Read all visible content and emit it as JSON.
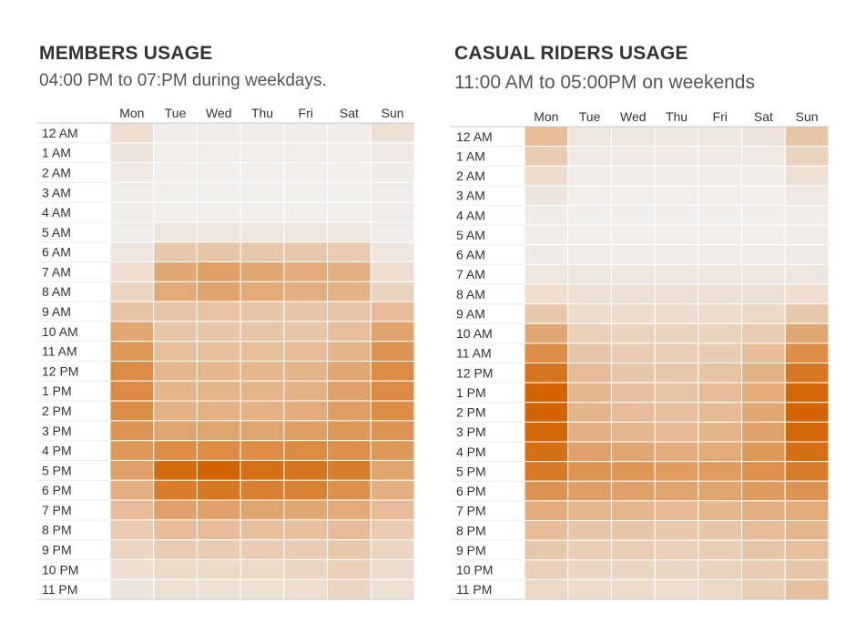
{
  "chart_data": [
    {
      "type": "heatmap",
      "title": "MEMBERS USAGE",
      "subtitle": "04:00 PM to 07:PM during weekdays.",
      "columns": [
        "Mon",
        "Tue",
        "Wed",
        "Thu",
        "Fri",
        "Sat",
        "Sun"
      ],
      "rows": [
        "12 AM",
        "1 AM",
        "2 AM",
        "3 AM",
        "4 AM",
        "5 AM",
        "6 AM",
        "7 AM",
        "8 AM",
        "9 AM",
        "10 AM",
        "11 AM",
        "12 PM",
        "1 PM",
        "2 PM",
        "3 PM",
        "4 PM",
        "5 PM",
        "6 PM",
        "7 PM",
        "8 PM",
        "9 PM",
        "10 PM",
        "11 PM"
      ],
      "color_low": "#f0efee",
      "color_high": "#d36400",
      "values": [
        [
          0.12,
          0.02,
          0.02,
          0.02,
          0.02,
          0.02,
          0.1
        ],
        [
          0.08,
          0.01,
          0.01,
          0.01,
          0.01,
          0.01,
          0.05
        ],
        [
          0.04,
          0.0,
          0.0,
          0.0,
          0.0,
          0.0,
          0.03
        ],
        [
          0.02,
          0.0,
          0.0,
          0.0,
          0.0,
          0.0,
          0.02
        ],
        [
          0.02,
          0.0,
          0.0,
          0.0,
          0.0,
          0.0,
          0.02
        ],
        [
          0.02,
          0.06,
          0.06,
          0.06,
          0.06,
          0.06,
          0.02
        ],
        [
          0.06,
          0.28,
          0.3,
          0.28,
          0.28,
          0.26,
          0.06
        ],
        [
          0.12,
          0.52,
          0.58,
          0.52,
          0.48,
          0.46,
          0.12
        ],
        [
          0.18,
          0.5,
          0.55,
          0.5,
          0.46,
          0.44,
          0.2
        ],
        [
          0.32,
          0.3,
          0.32,
          0.3,
          0.3,
          0.3,
          0.36
        ],
        [
          0.52,
          0.3,
          0.3,
          0.3,
          0.3,
          0.34,
          0.55
        ],
        [
          0.62,
          0.34,
          0.34,
          0.34,
          0.36,
          0.42,
          0.66
        ],
        [
          0.72,
          0.4,
          0.4,
          0.4,
          0.42,
          0.52,
          0.72
        ],
        [
          0.72,
          0.42,
          0.42,
          0.42,
          0.44,
          0.56,
          0.72
        ],
        [
          0.7,
          0.44,
          0.44,
          0.44,
          0.48,
          0.58,
          0.7
        ],
        [
          0.66,
          0.54,
          0.54,
          0.54,
          0.58,
          0.62,
          0.66
        ],
        [
          0.62,
          0.7,
          0.7,
          0.7,
          0.72,
          0.68,
          0.62
        ],
        [
          0.56,
          0.95,
          1.0,
          0.92,
          0.88,
          0.82,
          0.54
        ],
        [
          0.46,
          0.82,
          0.86,
          0.8,
          0.78,
          0.68,
          0.46
        ],
        [
          0.36,
          0.56,
          0.56,
          0.54,
          0.52,
          0.5,
          0.36
        ],
        [
          0.26,
          0.36,
          0.36,
          0.34,
          0.34,
          0.36,
          0.26
        ],
        [
          0.18,
          0.26,
          0.26,
          0.25,
          0.25,
          0.28,
          0.18
        ],
        [
          0.12,
          0.16,
          0.16,
          0.16,
          0.18,
          0.22,
          0.14
        ],
        [
          0.08,
          0.1,
          0.1,
          0.1,
          0.12,
          0.18,
          0.1
        ]
      ]
    },
    {
      "type": "heatmap",
      "title": "CASUAL RIDERS USAGE",
      "subtitle": "11:00 AM to 05:00PM on weekends",
      "columns": [
        "Mon",
        "Tue",
        "Wed",
        "Thu",
        "Fri",
        "Sat",
        "Sun"
      ],
      "rows": [
        "12 AM",
        "1 AM",
        "2 AM",
        "3 AM",
        "4 AM",
        "5 AM",
        "6 AM",
        "7 AM",
        "8 AM",
        "9 AM",
        "10 AM",
        "11 AM",
        "12 PM",
        "1 PM",
        "2 PM",
        "3 PM",
        "4 PM",
        "5 PM",
        "6 PM",
        "7 PM",
        "8 PM",
        "9 PM",
        "10 PM",
        "11 PM"
      ],
      "color_low": "#f0efee",
      "color_high": "#d36400",
      "values": [
        [
          0.36,
          0.06,
          0.06,
          0.06,
          0.06,
          0.08,
          0.3
        ],
        [
          0.26,
          0.04,
          0.04,
          0.04,
          0.04,
          0.04,
          0.2
        ],
        [
          0.14,
          0.02,
          0.02,
          0.02,
          0.02,
          0.02,
          0.1
        ],
        [
          0.08,
          0.01,
          0.01,
          0.01,
          0.01,
          0.01,
          0.05
        ],
        [
          0.03,
          0.0,
          0.0,
          0.0,
          0.0,
          0.0,
          0.02
        ],
        [
          0.02,
          0.0,
          0.0,
          0.0,
          0.0,
          0.0,
          0.02
        ],
        [
          0.03,
          0.02,
          0.02,
          0.02,
          0.02,
          0.02,
          0.03
        ],
        [
          0.06,
          0.06,
          0.06,
          0.06,
          0.06,
          0.06,
          0.06
        ],
        [
          0.12,
          0.1,
          0.1,
          0.1,
          0.1,
          0.1,
          0.12
        ],
        [
          0.28,
          0.14,
          0.14,
          0.14,
          0.14,
          0.16,
          0.28
        ],
        [
          0.52,
          0.22,
          0.2,
          0.2,
          0.2,
          0.26,
          0.52
        ],
        [
          0.7,
          0.3,
          0.26,
          0.24,
          0.26,
          0.36,
          0.7
        ],
        [
          0.88,
          0.36,
          0.3,
          0.28,
          0.32,
          0.44,
          0.86
        ],
        [
          1.0,
          0.4,
          0.34,
          0.32,
          0.36,
          0.5,
          0.98
        ],
        [
          1.0,
          0.42,
          0.36,
          0.34,
          0.38,
          0.52,
          1.0
        ],
        [
          0.98,
          0.46,
          0.4,
          0.38,
          0.42,
          0.56,
          0.98
        ],
        [
          0.92,
          0.56,
          0.52,
          0.48,
          0.5,
          0.62,
          0.92
        ],
        [
          0.84,
          0.66,
          0.64,
          0.6,
          0.6,
          0.68,
          0.82
        ],
        [
          0.66,
          0.58,
          0.56,
          0.54,
          0.54,
          0.6,
          0.66
        ],
        [
          0.48,
          0.4,
          0.4,
          0.38,
          0.4,
          0.46,
          0.5
        ],
        [
          0.36,
          0.3,
          0.3,
          0.28,
          0.3,
          0.36,
          0.4
        ],
        [
          0.28,
          0.24,
          0.24,
          0.22,
          0.24,
          0.3,
          0.34
        ],
        [
          0.22,
          0.18,
          0.18,
          0.17,
          0.2,
          0.26,
          0.3
        ],
        [
          0.16,
          0.14,
          0.14,
          0.13,
          0.16,
          0.24,
          0.34
        ]
      ]
    }
  ]
}
